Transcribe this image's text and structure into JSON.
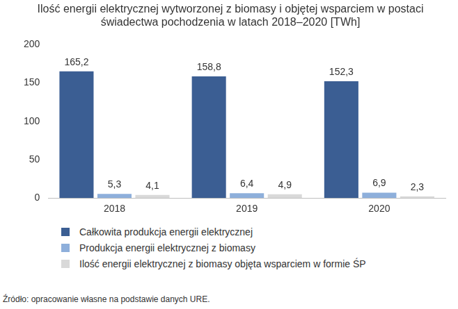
{
  "chart_data": {
    "type": "bar",
    "title": [
      "Ilość energii elektrycznej wytworzonej z biomasy i objętej wsparciem w postaci",
      "świadectwa pochodzenia w latach 2018–2020 [TWh]"
    ],
    "source": "Źródło: opracowanie własne na podstawie danych URE.",
    "categories": [
      "2018",
      "2019",
      "2020"
    ],
    "series": [
      {
        "name": "Całkowita produkcja energii elektrycznej",
        "color": "#3b5e93",
        "values": [
          165.2,
          158.8,
          152.3
        ],
        "value_labels": [
          "165,2",
          "158,8",
          "152,3"
        ]
      },
      {
        "name": "Produkcja energii elektrycznej z biomasy",
        "color": "#8eafdb",
        "values": [
          5.3,
          6.4,
          6.9
        ],
        "value_labels": [
          "5,3",
          "6,4",
          "6,9"
        ]
      },
      {
        "name": "Ilość energii elektrycznej z biomasy objęta wsparciem w formie ŚP",
        "color": "#d9d9d9",
        "values": [
          4.1,
          4.9,
          2.3
        ],
        "value_labels": [
          "4,1",
          "4,9",
          "2,3"
        ]
      }
    ],
    "ylim": [
      0,
      200
    ],
    "yticks": [
      0,
      50,
      100,
      150,
      200
    ],
    "grid": false,
    "legend": "bottom",
    "data_labels": true
  }
}
